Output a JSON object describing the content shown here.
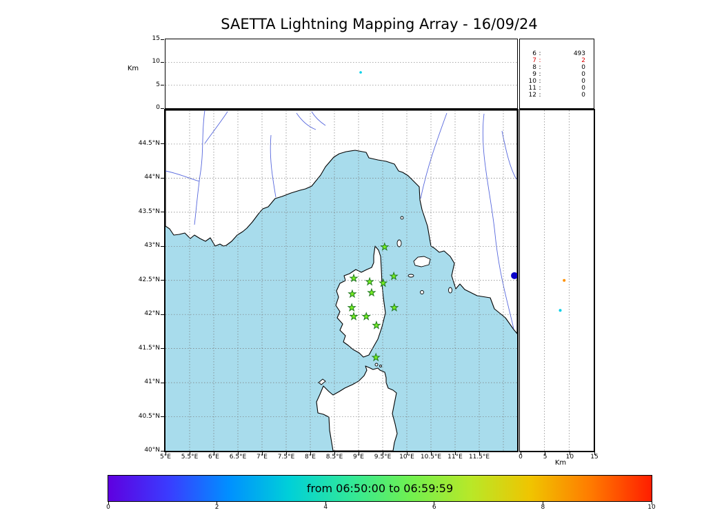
{
  "chart_data": {
    "type": "scatter",
    "title": "SAETTA Lightning Mapping Array - 16/09/24",
    "altitude_time_panel": {
      "ylabel": "Km",
      "yticks": [
        15,
        10,
        5,
        0
      ],
      "ylim": [
        0,
        15
      ],
      "points": [
        {
          "x_frac": 0.555,
          "alt_km": 7.8,
          "color": "#00d0e8"
        }
      ]
    },
    "station_count_table": {
      "rows": [
        {
          "stations": 6,
          "count": 493,
          "color": "#000000"
        },
        {
          "stations": 7,
          "count": 2,
          "color": "#dd0000"
        },
        {
          "stations": 8,
          "count": 0,
          "color": "#000000"
        },
        {
          "stations": 9,
          "count": 0,
          "color": "#000000"
        },
        {
          "stations": 10,
          "count": 0,
          "color": "#000000"
        },
        {
          "stations": 11,
          "count": 0,
          "color": "#000000"
        },
        {
          "stations": 12,
          "count": 0,
          "color": "#000000"
        }
      ]
    },
    "map_panel": {
      "lon_lim": [
        5,
        12.29
      ],
      "lat_lim": [
        40,
        44.995
      ],
      "lon_ticks": [
        "5°E",
        "5.5°E",
        "6°E",
        "6.5°E",
        "7°E",
        "7.5°E",
        "8°E",
        "8.5°E",
        "9°E",
        "9.5°E",
        "10°E",
        "10.5°E",
        "11°E",
        "11.5°E"
      ],
      "lat_ticks": [
        "44.5°N",
        "44°N",
        "43.5°N",
        "43°N",
        "42.5°N",
        "42°N",
        "41.5°N",
        "41°N",
        "40.5°N",
        "40°N"
      ],
      "sea_color": "#a8dcec",
      "land_color": "#ffffff",
      "station_marker": {
        "fill": "#77ee22",
        "stroke": "#1f7a1f"
      },
      "stations_lonlat": [
        [
          9.54,
          42.99
        ],
        [
          8.9,
          42.53
        ],
        [
          9.23,
          42.48
        ],
        [
          9.51,
          42.46
        ],
        [
          9.73,
          42.56
        ],
        [
          8.87,
          42.3
        ],
        [
          9.27,
          42.32
        ],
        [
          8.86,
          42.1
        ],
        [
          9.74,
          42.1
        ],
        [
          8.9,
          41.97
        ],
        [
          9.16,
          41.97
        ],
        [
          9.37,
          41.84
        ],
        [
          9.36,
          41.37
        ]
      ],
      "event": {
        "lon": 12.23,
        "lat": 42.57,
        "color": "#0a00c8"
      }
    },
    "altitude_lat_panel": {
      "xlabel": "Km",
      "xticks": [
        0,
        5,
        10,
        15
      ],
      "xlim": [
        0,
        15
      ],
      "points": [
        {
          "alt_km": 9.0,
          "lat": 42.5,
          "color": "#ff9100"
        },
        {
          "alt_km": 8.2,
          "lat": 42.06,
          "color": "#00d0e8"
        }
      ]
    },
    "colorbar": {
      "label": "from 06:50:00 to 06:59:59",
      "ticks": [
        0,
        2,
        4,
        6,
        8,
        10
      ],
      "colors": [
        "#5f00e0",
        "#3a3cff",
        "#0090ff",
        "#00d0d8",
        "#30e89a",
        "#70f050",
        "#b8e828",
        "#f0c400",
        "#ff7a00",
        "#ff1e00"
      ]
    }
  }
}
